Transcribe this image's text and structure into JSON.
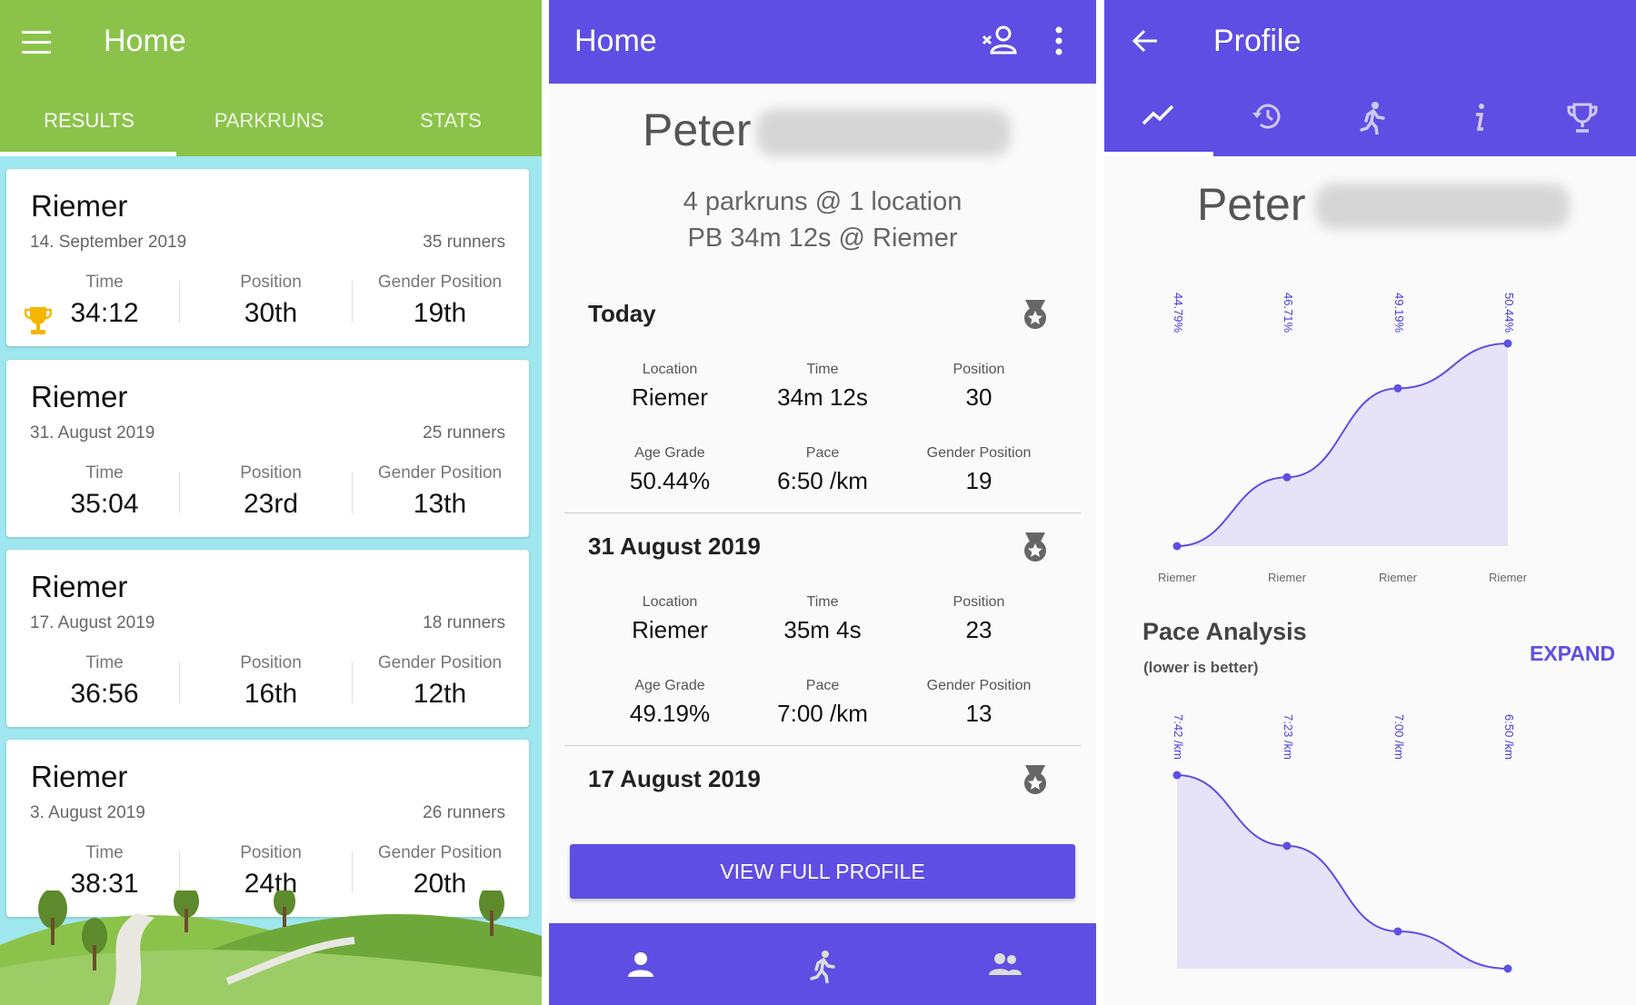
{
  "screen1": {
    "title": "Home",
    "tabs": [
      {
        "label": "RESULTS",
        "active": true
      },
      {
        "label": "PARKRUNS",
        "active": false
      },
      {
        "label": "STATS",
        "active": false
      }
    ],
    "column_labels": {
      "time": "Time",
      "position": "Position",
      "gender_position": "Gender Position"
    },
    "results": [
      {
        "location": "Riemer",
        "date": "14. September 2019",
        "runners": "35 runners",
        "time": "34:12",
        "position": "30th",
        "gender_position": "19th",
        "pb": true
      },
      {
        "location": "Riemer",
        "date": "31. August 2019",
        "runners": "25 runners",
        "time": "35:04",
        "position": "23rd",
        "gender_position": "13th",
        "pb": false
      },
      {
        "location": "Riemer",
        "date": "17. August 2019",
        "runners": "18 runners",
        "time": "36:56",
        "position": "16th",
        "gender_position": "12th",
        "pb": false
      },
      {
        "location": "Riemer",
        "date": "3. August 2019",
        "runners": "26 runners",
        "time": "38:31",
        "position": "24th",
        "gender_position": "20th",
        "pb": false
      }
    ],
    "colors": {
      "appbar": "#8bc34a",
      "background": "#9fe7ee",
      "trophy": "#f5b500"
    }
  },
  "screen2": {
    "title": "Home",
    "icons": {
      "add_user": "person-add-icon",
      "more": "more-vert-icon"
    },
    "first_name": "Peter",
    "summary_line1": "4 parkruns @ 1 location",
    "summary_line2": "PB 34m 12s @ Riemer",
    "labels": {
      "location": "Location",
      "time": "Time",
      "position": "Position",
      "age_grade": "Age Grade",
      "pace": "Pace",
      "gender_position": "Gender Position"
    },
    "sections": [
      {
        "heading": "Today",
        "location": "Riemer",
        "time": "34m 12s",
        "position": "30",
        "age_grade": "50.44%",
        "pace": "6:50 /km",
        "gender_position": "19"
      },
      {
        "heading": "31 August 2019",
        "location": "Riemer",
        "time": "35m 4s",
        "position": "23",
        "age_grade": "49.19%",
        "pace": "7:00 /km",
        "gender_position": "13"
      },
      {
        "heading": "17 August 2019"
      }
    ],
    "button_label": "VIEW FULL PROFILE",
    "bottom_nav": [
      "person-icon",
      "run-icon",
      "group-icon"
    ],
    "colors": {
      "primary": "#5e4ee3"
    }
  },
  "screen3": {
    "title": "Profile",
    "tabs": [
      {
        "icon": "trending-up-icon",
        "active": true
      },
      {
        "icon": "history-icon",
        "active": false
      },
      {
        "icon": "run-icon",
        "active": false
      },
      {
        "icon": "info-icon",
        "active": false
      },
      {
        "icon": "trophy-icon",
        "active": false
      }
    ],
    "first_name": "Peter",
    "pace_title": "Pace Analysis",
    "pace_note": "(lower is better)",
    "expand_label": "EXPAND",
    "chart_data": [
      {
        "type": "area",
        "categories": [
          "Riemer",
          "Riemer",
          "Riemer",
          "Riemer"
        ],
        "values": [
          44.79,
          46.71,
          49.19,
          50.44
        ],
        "data_labels": [
          "44.79%",
          "46.71%",
          "49.19%",
          "50.44%"
        ],
        "ylim": [
          44.79,
          50.44
        ]
      },
      {
        "type": "area",
        "title": "Pace Analysis",
        "values": [
          7.7,
          7.383,
          7.0,
          6.833
        ],
        "data_labels": [
          "7:42 /km",
          "7:23 /km",
          "7:00 /km",
          "6:50 /km"
        ],
        "ylim": [
          6.833,
          7.7
        ]
      }
    ]
  }
}
